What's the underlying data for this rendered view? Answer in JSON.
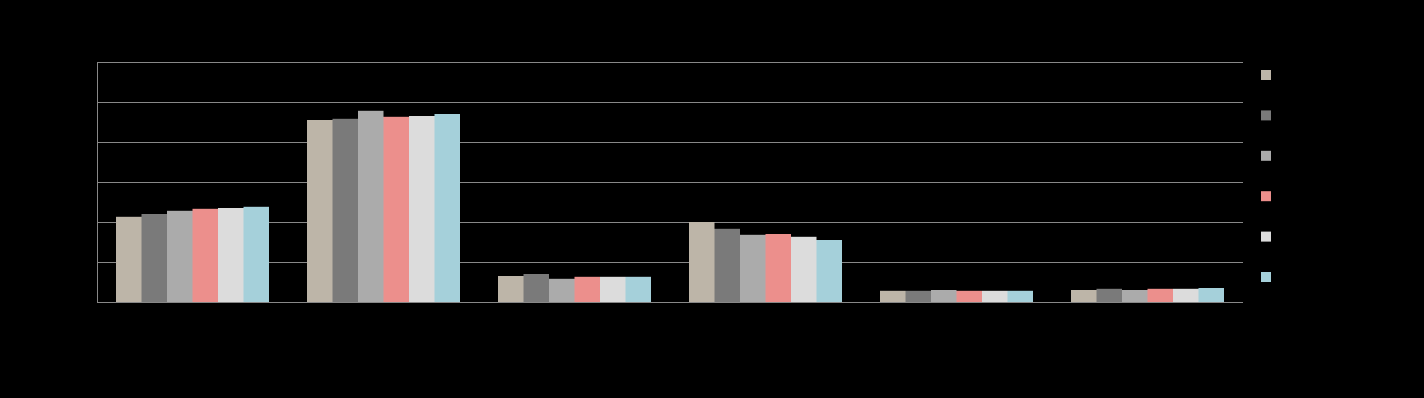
{
  "chart_data": {
    "type": "bar",
    "categories": [
      null,
      null,
      null,
      null,
      null,
      null
    ],
    "series": [
      {
        "color": "#bdb5a8",
        "values": [
          2.13,
          4.55,
          0.65,
          2.0,
          0.28,
          0.3
        ]
      },
      {
        "color": "#7a7a7a",
        "values": [
          2.2,
          4.58,
          0.7,
          1.83,
          0.28,
          0.33
        ]
      },
      {
        "color": "#ababab",
        "values": [
          2.28,
          4.78,
          0.58,
          1.68,
          0.3,
          0.3
        ]
      },
      {
        "color": "#ec8f8c",
        "values": [
          2.33,
          4.63,
          0.63,
          1.7,
          0.28,
          0.33
        ]
      },
      {
        "color": "#dcdcdc",
        "values": [
          2.35,
          4.65,
          0.63,
          1.63,
          0.28,
          0.33
        ]
      },
      {
        "color": "#a5d0da",
        "values": [
          2.38,
          4.7,
          0.63,
          1.55,
          0.28,
          0.35
        ]
      }
    ],
    "ylim": [
      0,
      6
    ],
    "yticks": [
      0,
      1,
      2,
      3,
      4,
      5,
      6
    ],
    "grid": true
  }
}
